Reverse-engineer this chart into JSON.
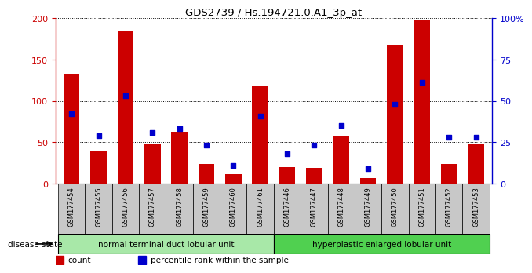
{
  "title": "GDS2739 / Hs.194721.0.A1_3p_at",
  "categories": [
    "GSM177454",
    "GSM177455",
    "GSM177456",
    "GSM177457",
    "GSM177458",
    "GSM177459",
    "GSM177460",
    "GSM177461",
    "GSM177446",
    "GSM177447",
    "GSM177448",
    "GSM177449",
    "GSM177450",
    "GSM177451",
    "GSM177452",
    "GSM177453"
  ],
  "counts": [
    133,
    40,
    185,
    48,
    63,
    24,
    11,
    118,
    20,
    19,
    57,
    7,
    168,
    197,
    24,
    48
  ],
  "percentiles": [
    42,
    29,
    53,
    31,
    33,
    23,
    11,
    41,
    18,
    23,
    35,
    9,
    48,
    61,
    28,
    28
  ],
  "ylim_left": [
    0,
    200
  ],
  "ylim_right": [
    0,
    100
  ],
  "yticks_left": [
    0,
    50,
    100,
    150,
    200
  ],
  "yticks_right": [
    0,
    25,
    50,
    75,
    100
  ],
  "yticklabels_right": [
    "0",
    "25",
    "50",
    "75",
    "100%"
  ],
  "bar_color": "#cc0000",
  "dot_color": "#0000cc",
  "bg_color": "#ffffff",
  "group1_label": "normal terminal duct lobular unit",
  "group2_label": "hyperplastic enlarged lobular unit",
  "group1_count": 8,
  "group2_count": 8,
  "disease_label": "disease state",
  "legend_count": "count",
  "legend_pct": "percentile rank within the sample",
  "tick_bg": "#c8c8c8",
  "group1_bg": "#a8e8a8",
  "group2_bg": "#50d050"
}
